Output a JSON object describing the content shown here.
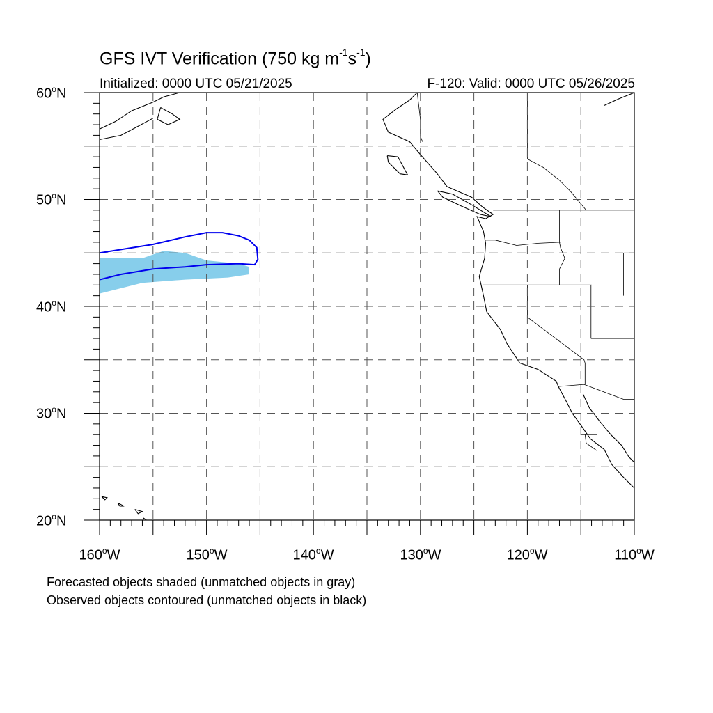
{
  "title": {
    "main": "GFS IVT Verification (750 kg m",
    "sup1": "-1",
    "mid": "s",
    "sup2": "-1",
    "end": ")"
  },
  "subtitle": {
    "left": "Initialized: 0000 UTC 05/21/2025",
    "right": "F-120: Valid: 0000 UTC 05/26/2025"
  },
  "axes": {
    "lat_labels": [
      {
        "num": "60",
        "deg": "o",
        "hem": "N",
        "lat": 60
      },
      {
        "num": "50",
        "deg": "o",
        "hem": "N",
        "lat": 50
      },
      {
        "num": "40",
        "deg": "o",
        "hem": "N",
        "lat": 40
      },
      {
        "num": "30",
        "deg": "o",
        "hem": "N",
        "lat": 30
      },
      {
        "num": "20",
        "deg": "o",
        "hem": "N",
        "lat": 20
      }
    ],
    "lon_labels": [
      {
        "num": "160",
        "deg": "o",
        "hem": "W",
        "lon": -160
      },
      {
        "num": "150",
        "deg": "o",
        "hem": "W",
        "lon": -150
      },
      {
        "num": "140",
        "deg": "o",
        "hem": "W",
        "lon": -140
      },
      {
        "num": "130",
        "deg": "o",
        "hem": "W",
        "lon": -130
      },
      {
        "num": "120",
        "deg": "o",
        "hem": "W",
        "lon": -120
      },
      {
        "num": "110",
        "deg": "o",
        "hem": "W",
        "lon": -110
      }
    ],
    "lat_range": [
      20,
      60
    ],
    "lon_range": [
      -160,
      -110
    ],
    "grid_spacing_deg": 5
  },
  "notes": {
    "line1": "Forecasted objects shaded (unmatched objects in gray)",
    "line2": "Observed objects contoured (unmatched objects in black)"
  },
  "colors": {
    "forecast_fill": "#87ceeb",
    "observed_contour": "#0000ee",
    "grid": "#555555",
    "coast": "#000000"
  },
  "objects": {
    "forecast_shaded": [
      [
        -160,
        44.5
      ],
      [
        -156,
        44.5
      ],
      [
        -154,
        45.2
      ],
      [
        -152,
        45.0
      ],
      [
        -150,
        44.3
      ],
      [
        -147,
        44.0
      ],
      [
        -146,
        43.7
      ],
      [
        -146,
        43.0
      ],
      [
        -148,
        42.7
      ],
      [
        -152,
        42.5
      ],
      [
        -156,
        42.2
      ],
      [
        -160,
        41.2
      ]
    ],
    "observed_contour": [
      [
        -160,
        45.0
      ],
      [
        -155,
        45.8
      ],
      [
        -152,
        46.5
      ],
      [
        -150,
        46.9
      ],
      [
        -148.5,
        46.9
      ],
      [
        -147,
        46.6
      ],
      [
        -146,
        46.2
      ],
      [
        -145.3,
        45.5
      ],
      [
        -145.2,
        44.4
      ],
      [
        -145.5,
        43.9
      ],
      [
        -147,
        44.0
      ],
      [
        -150,
        43.9
      ],
      [
        -152,
        43.7
      ],
      [
        -155,
        43.5
      ],
      [
        -158,
        43.0
      ],
      [
        -160,
        42.5
      ]
    ]
  },
  "coastlines": {
    "west_coast": [
      [
        -130.3,
        60
      ],
      [
        -131,
        59.3
      ],
      [
        -132.2,
        58.5
      ],
      [
        -133.5,
        57.5
      ],
      [
        -133,
        56.3
      ],
      [
        -131,
        55.4
      ],
      [
        -130,
        54.2
      ],
      [
        -128.5,
        52.5
      ],
      [
        -127.5,
        51.2
      ],
      [
        -125.2,
        50.2
      ],
      [
        -124.2,
        49.3
      ],
      [
        -123.2,
        48.6
      ],
      [
        -123.9,
        48.2
      ],
      [
        -124.7,
        48.4
      ],
      [
        -124.1,
        47.0
      ],
      [
        -123.9,
        45.9
      ],
      [
        -124.0,
        44.5
      ],
      [
        -124.5,
        42.8
      ],
      [
        -124.1,
        41.0
      ],
      [
        -123.8,
        39.5
      ],
      [
        -122.5,
        37.8
      ],
      [
        -121.9,
        36.5
      ],
      [
        -120.7,
        34.7
      ],
      [
        -119.0,
        34.1
      ],
      [
        -117.3,
        33.0
      ],
      [
        -117.1,
        32.5
      ],
      [
        -116.3,
        31.0
      ],
      [
        -115.8,
        30.0
      ],
      [
        -114.8,
        28.6
      ],
      [
        -114.1,
        27.6
      ],
      [
        -112.8,
        26.6
      ],
      [
        -112.1,
        25.2
      ],
      [
        -111,
        24
      ],
      [
        -110,
        23
      ]
    ],
    "vancouver_island": [
      [
        -128.4,
        50.8
      ],
      [
        -127,
        50.5
      ],
      [
        -125.2,
        49.5
      ],
      [
        -123.4,
        48.4
      ],
      [
        -124.4,
        48.6
      ],
      [
        -126.2,
        49.4
      ],
      [
        -127.9,
        50.2
      ],
      [
        -128.4,
        50.8
      ]
    ],
    "haida_gwaii": [
      [
        -133.1,
        54.1
      ],
      [
        -132.1,
        54.0
      ],
      [
        -131.2,
        52.3
      ],
      [
        -131.9,
        52.4
      ],
      [
        -133,
        53.5
      ],
      [
        -133.1,
        54.1
      ]
    ],
    "gulf_east_coast": [
      [
        -114.8,
        31.8
      ],
      [
        -114.2,
        30.5
      ],
      [
        -113.2,
        29.2
      ],
      [
        -112.2,
        28.0
      ],
      [
        -111.2,
        27.0
      ],
      [
        -110.5,
        25.9
      ],
      [
        -110,
        25.4
      ]
    ],
    "alaska_peninsula": [
      [
        -160,
        56.6
      ],
      [
        -158.5,
        57.3
      ],
      [
        -157,
        58.3
      ],
      [
        -155,
        59.1
      ],
      [
        -154,
        59.6
      ],
      [
        -152.5,
        60
      ]
    ],
    "alaska_south": [
      [
        -160,
        55.6
      ],
      [
        -158,
        56.0
      ],
      [
        -156.5,
        56.8
      ],
      [
        -155,
        57.6
      ]
    ],
    "kodiak": [
      [
        -154.3,
        58.6
      ],
      [
        -153.2,
        58.0
      ],
      [
        -152.5,
        57.5
      ],
      [
        -153.6,
        57.0
      ],
      [
        -154.6,
        57.5
      ],
      [
        -154.3,
        58.6
      ]
    ],
    "hawaii_big": [
      [
        -155.9,
        20.2
      ],
      [
        -155.2,
        19.7
      ],
      [
        -154.8,
        19.5
      ],
      [
        -155.6,
        19.0
      ],
      [
        -156.0,
        19.6
      ],
      [
        -155.9,
        20.2
      ]
    ],
    "hawaii_maui": [
      [
        -156.7,
        21.0
      ],
      [
        -156.0,
        20.8
      ],
      [
        -156.4,
        20.6
      ],
      [
        -156.7,
        21.0
      ]
    ],
    "hawaii_oahu": [
      [
        -158.3,
        21.6
      ],
      [
        -157.7,
        21.3
      ],
      [
        -158.1,
        21.3
      ],
      [
        -158.3,
        21.6
      ]
    ],
    "hawaii_kauai": [
      [
        -159.8,
        22.2
      ],
      [
        -159.3,
        22.1
      ],
      [
        -159.5,
        21.9
      ],
      [
        -159.8,
        22.2
      ]
    ],
    "hudson_east": [
      [
        -110,
        60
      ],
      [
        -111.5,
        59.4
      ],
      [
        -112.8,
        58.8
      ]
    ]
  },
  "boundaries": {
    "bc_ak_border": [
      [
        -130.3,
        60
      ],
      [
        -130.0,
        57.5
      ],
      [
        -130.0,
        55.9
      ],
      [
        -129.8,
        55.4
      ]
    ],
    "us_canada": [
      [
        -123.2,
        49
      ],
      [
        -110,
        49
      ]
    ],
    "wa_or": [
      [
        -124,
        46.2
      ],
      [
        -123,
        46.2
      ],
      [
        -121,
        45.7
      ],
      [
        -119,
        45.9
      ],
      [
        -116.9,
        46.0
      ]
    ],
    "idaho_west": [
      [
        -117.0,
        49
      ],
      [
        -117.0,
        46.0
      ],
      [
        -116.9,
        45.5
      ],
      [
        -116.5,
        44.5
      ],
      [
        -117.0,
        43.5
      ],
      [
        -117.0,
        42
      ]
    ],
    "or_ca_nv": [
      [
        -124.2,
        42
      ],
      [
        -114,
        42
      ]
    ],
    "ca_nv": [
      [
        -120,
        42
      ],
      [
        -120,
        39
      ],
      [
        -114.7,
        35
      ],
      [
        -114.6,
        34.7
      ],
      [
        -114.6,
        32.7
      ]
    ],
    "nv_ut": [
      [
        -114.05,
        42
      ],
      [
        -114.05,
        37
      ]
    ],
    "ut_az": [
      [
        -114.05,
        37
      ],
      [
        -110,
        37
      ]
    ],
    "us_mexico": [
      [
        -117.1,
        32.5
      ],
      [
        -114.7,
        32.7
      ],
      [
        -111,
        31.3
      ],
      [
        -108.2,
        31.3
      ]
    ],
    "mt_wy": [
      [
        -111,
        45
      ],
      [
        -110,
        45
      ]
    ],
    "wy_west": [
      [
        -111,
        45
      ],
      [
        -111,
        41
      ]
    ],
    "bc_ab": [
      [
        -120,
        60
      ],
      [
        -120,
        53.8
      ],
      [
        -118.5,
        53
      ],
      [
        -117,
        51.8
      ],
      [
        -116,
        50.8
      ],
      [
        -114.5,
        49
      ]
    ],
    "mexico_inner": [
      [
        -114.6,
        28
      ],
      [
        -114.5,
        27.2
      ],
      [
        -113.5,
        26.5
      ]
    ],
    "baja_state": [
      [
        -115,
        28
      ],
      [
        -113.5,
        28
      ]
    ]
  }
}
